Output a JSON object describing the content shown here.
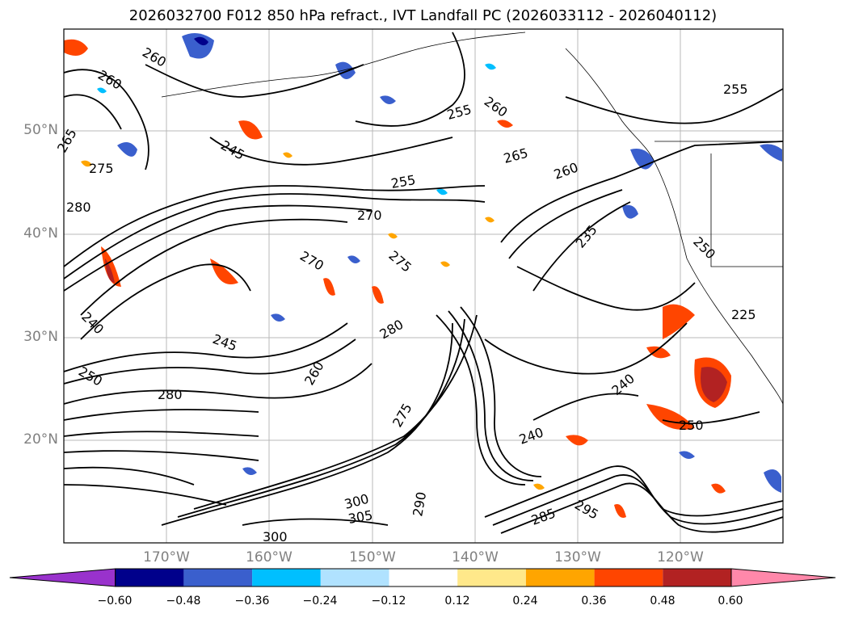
{
  "title": "2026032700 F012 850 hPa refract., IVT Landfall PC (2026033112 - 2026040112)",
  "lat_labels": [
    "50°N",
    "40°N",
    "30°N",
    "20°N"
  ],
  "lon_labels": [
    "170°W",
    "160°W",
    "150°W",
    "140°W",
    "130°W",
    "120°W"
  ],
  "contour_labels": [
    "260",
    "260",
    "255",
    "265",
    "275",
    "245",
    "255",
    "260",
    "265",
    "260",
    "255",
    "250",
    "280",
    "235",
    "240",
    "270",
    "275",
    "270",
    "240",
    "280",
    "245",
    "250",
    "280",
    "260",
    "240",
    "250",
    "300",
    "305",
    "295",
    "285",
    "300",
    "290",
    "275",
    "225"
  ],
  "colorbar": {
    "ticks": [
      "−0.60",
      "−0.48",
      "−0.36",
      "−0.24",
      "−0.12",
      "0.12",
      "0.24",
      "0.36",
      "0.48",
      "0.60"
    ],
    "colors": [
      "#9932cc",
      "#00008b",
      "#3a5fcd",
      "#00bfff",
      "#b0e2ff",
      "#ffffff",
      "#ffe88a",
      "#ffa500",
      "#ff4500",
      "#b22222",
      "#ff88aa"
    ]
  }
}
